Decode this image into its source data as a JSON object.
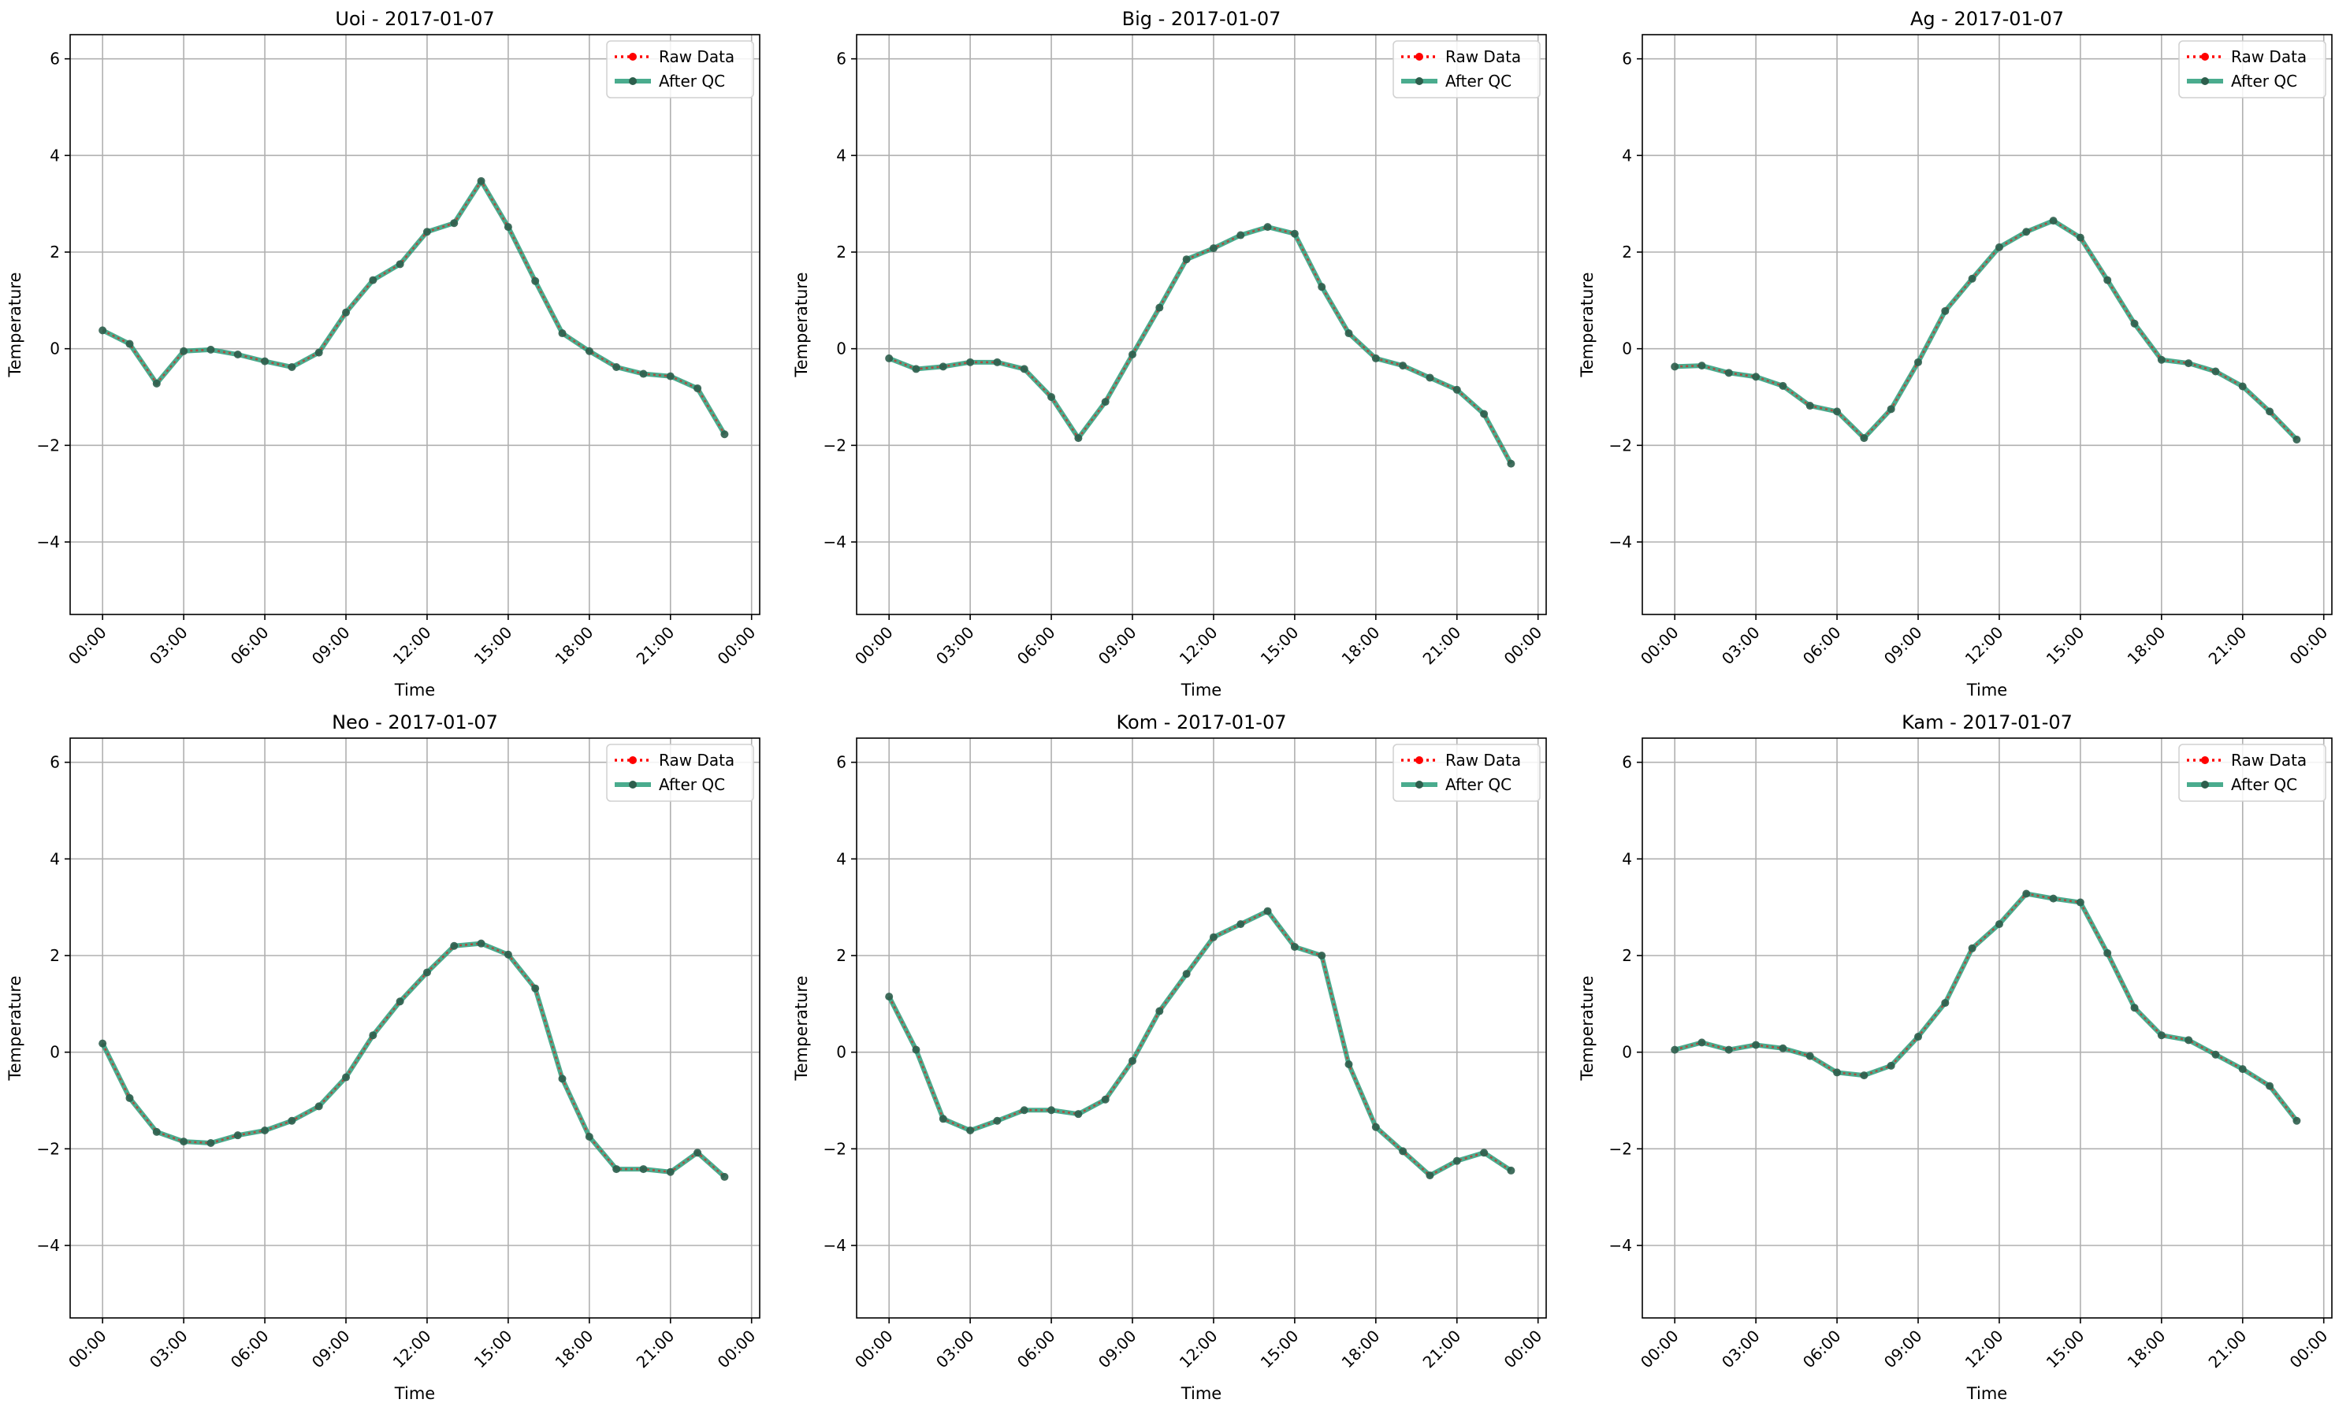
{
  "chart_data": [
    {
      "type": "line",
      "title": "Uoi - 2017-01-07",
      "xlabel": "Time",
      "ylabel": "Temperature",
      "ylim": [
        -5.5,
        6.5
      ],
      "yticks": [
        "6",
        "4",
        "2",
        "0",
        "−2",
        "−4"
      ],
      "ytick_values": [
        6,
        4,
        2,
        0,
        -2,
        -4
      ],
      "xticks": [
        "00:00",
        "03:00",
        "06:00",
        "09:00",
        "12:00",
        "15:00",
        "18:00",
        "21:00",
        "00:00"
      ],
      "xtick_values": [
        0,
        3,
        6,
        9,
        12,
        15,
        18,
        21,
        24
      ],
      "xlim": [
        -1.2,
        24.3
      ],
      "grid": true,
      "legend_position": "top-right",
      "x": [
        0,
        1,
        2,
        3,
        4,
        5,
        6,
        7,
        8,
        9,
        10,
        11,
        12,
        13,
        14,
        15,
        16,
        17,
        18,
        19,
        20,
        21,
        22,
        23
      ],
      "series": [
        {
          "name": "Raw Data",
          "values": [
            0.38,
            0.1,
            -0.72,
            -0.05,
            -0.02,
            -0.12,
            -0.26,
            -0.38,
            -0.08,
            0.75,
            1.42,
            1.75,
            2.42,
            2.6,
            3.47,
            2.52,
            1.4,
            0.32,
            -0.05,
            -0.38,
            -0.52,
            -0.57,
            -0.82,
            -1.77
          ]
        },
        {
          "name": "After QC",
          "values": [
            0.38,
            0.1,
            -0.72,
            -0.05,
            -0.02,
            -0.12,
            -0.26,
            -0.38,
            -0.08,
            0.75,
            1.42,
            1.75,
            2.42,
            2.6,
            3.47,
            2.52,
            1.4,
            0.32,
            -0.05,
            -0.38,
            -0.52,
            -0.57,
            -0.82,
            -1.77
          ]
        }
      ]
    },
    {
      "type": "line",
      "title": "Big - 2017-01-07",
      "xlabel": "Time",
      "ylabel": "Temperature",
      "ylim": [
        -5.5,
        6.5
      ],
      "yticks": [
        "6",
        "4",
        "2",
        "0",
        "−2",
        "−4"
      ],
      "ytick_values": [
        6,
        4,
        2,
        0,
        -2,
        -4
      ],
      "xticks": [
        "00:00",
        "03:00",
        "06:00",
        "09:00",
        "12:00",
        "15:00",
        "18:00",
        "21:00",
        "00:00"
      ],
      "xtick_values": [
        0,
        3,
        6,
        9,
        12,
        15,
        18,
        21,
        24
      ],
      "xlim": [
        -1.2,
        24.3
      ],
      "grid": true,
      "legend_position": "top-right",
      "x": [
        0,
        1,
        2,
        3,
        4,
        5,
        6,
        7,
        8,
        9,
        10,
        11,
        12,
        13,
        14,
        15,
        16,
        17,
        18,
        19,
        20,
        21,
        22,
        23
      ],
      "series": [
        {
          "name": "Raw Data",
          "values": [
            -0.2,
            -0.42,
            -0.37,
            -0.28,
            -0.28,
            -0.42,
            -1.0,
            -1.85,
            -1.1,
            -0.12,
            0.85,
            1.85,
            2.08,
            2.35,
            2.52,
            2.38,
            1.28,
            0.32,
            -0.2,
            -0.35,
            -0.6,
            -0.85,
            -1.35,
            -2.38
          ]
        },
        {
          "name": "After QC",
          "values": [
            -0.2,
            -0.42,
            -0.37,
            -0.28,
            -0.28,
            -0.42,
            -1.0,
            -1.85,
            -1.1,
            -0.12,
            0.85,
            1.85,
            2.08,
            2.35,
            2.52,
            2.38,
            1.28,
            0.32,
            -0.2,
            -0.35,
            -0.6,
            -0.85,
            -1.35,
            -2.38
          ]
        }
      ]
    },
    {
      "type": "line",
      "title": "Ag - 2017-01-07",
      "xlabel": "Time",
      "ylabel": "Temperature",
      "ylim": [
        -5.5,
        6.5
      ],
      "yticks": [
        "6",
        "4",
        "2",
        "0",
        "−2",
        "−4"
      ],
      "ytick_values": [
        6,
        4,
        2,
        0,
        -2,
        -4
      ],
      "xticks": [
        "00:00",
        "03:00",
        "06:00",
        "09:00",
        "12:00",
        "15:00",
        "18:00",
        "21:00",
        "00:00"
      ],
      "xtick_values": [
        0,
        3,
        6,
        9,
        12,
        15,
        18,
        21,
        24
      ],
      "xlim": [
        -1.2,
        24.3
      ],
      "grid": true,
      "legend_position": "top-right",
      "x": [
        0,
        1,
        2,
        3,
        4,
        5,
        6,
        7,
        8,
        9,
        10,
        11,
        12,
        13,
        14,
        15,
        16,
        17,
        18,
        19,
        20,
        21,
        22,
        23
      ],
      "series": [
        {
          "name": "Raw Data",
          "values": [
            -0.37,
            -0.35,
            -0.5,
            -0.58,
            -0.77,
            -1.18,
            -1.3,
            -1.85,
            -1.25,
            -0.28,
            0.78,
            1.45,
            2.1,
            2.42,
            2.65,
            2.3,
            1.42,
            0.52,
            -0.23,
            -0.3,
            -0.47,
            -0.78,
            -1.3,
            -1.88
          ]
        },
        {
          "name": "After QC",
          "values": [
            -0.37,
            -0.35,
            -0.5,
            -0.58,
            -0.77,
            -1.18,
            -1.3,
            -1.85,
            -1.25,
            -0.28,
            0.78,
            1.45,
            2.1,
            2.42,
            2.65,
            2.3,
            1.42,
            0.52,
            -0.23,
            -0.3,
            -0.47,
            -0.78,
            -1.3,
            -1.88
          ]
        }
      ]
    },
    {
      "type": "line",
      "title": "Neo - 2017-01-07",
      "xlabel": "Time",
      "ylabel": "Temperature",
      "ylim": [
        -5.5,
        6.5
      ],
      "yticks": [
        "6",
        "4",
        "2",
        "0",
        "−2",
        "−4"
      ],
      "ytick_values": [
        6,
        4,
        2,
        0,
        -2,
        -4
      ],
      "xticks": [
        "00:00",
        "03:00",
        "06:00",
        "09:00",
        "12:00",
        "15:00",
        "18:00",
        "21:00",
        "00:00"
      ],
      "xtick_values": [
        0,
        3,
        6,
        9,
        12,
        15,
        18,
        21,
        24
      ],
      "xlim": [
        -1.2,
        24.3
      ],
      "grid": true,
      "legend_position": "top-right",
      "x": [
        0,
        1,
        2,
        3,
        4,
        5,
        6,
        7,
        8,
        9,
        10,
        11,
        12,
        13,
        14,
        15,
        16,
        17,
        18,
        19,
        20,
        21,
        22,
        23
      ],
      "series": [
        {
          "name": "Raw Data",
          "values": [
            0.18,
            -0.95,
            -1.65,
            -1.85,
            -1.88,
            -1.72,
            -1.62,
            -1.42,
            -1.12,
            -0.52,
            0.35,
            1.05,
            1.65,
            2.2,
            2.25,
            2.02,
            1.32,
            -0.55,
            -1.75,
            -2.42,
            -2.42,
            -2.48,
            -2.08,
            -2.58
          ]
        },
        {
          "name": "After QC",
          "values": [
            0.18,
            -0.95,
            -1.65,
            -1.85,
            -1.88,
            -1.72,
            -1.62,
            -1.42,
            -1.12,
            -0.52,
            0.35,
            1.05,
            1.65,
            2.2,
            2.25,
            2.02,
            1.32,
            -0.55,
            -1.75,
            -2.42,
            -2.42,
            -2.48,
            -2.08,
            -2.58
          ]
        }
      ]
    },
    {
      "type": "line",
      "title": "Kom - 2017-01-07",
      "xlabel": "Time",
      "ylabel": "Temperature",
      "ylim": [
        -5.5,
        6.5
      ],
      "yticks": [
        "6",
        "4",
        "2",
        "0",
        "−2",
        "−4"
      ],
      "ytick_values": [
        6,
        4,
        2,
        0,
        -2,
        -4
      ],
      "xticks": [
        "00:00",
        "03:00",
        "06:00",
        "09:00",
        "12:00",
        "15:00",
        "18:00",
        "21:00",
        "00:00"
      ],
      "xtick_values": [
        0,
        3,
        6,
        9,
        12,
        15,
        18,
        21,
        24
      ],
      "xlim": [
        -1.2,
        24.3
      ],
      "grid": true,
      "legend_position": "top-right",
      "x": [
        0,
        1,
        2,
        3,
        4,
        5,
        6,
        7,
        8,
        9,
        10,
        11,
        12,
        13,
        14,
        15,
        16,
        17,
        18,
        19,
        20,
        21,
        22,
        23
      ],
      "series": [
        {
          "name": "Raw Data",
          "values": [
            1.15,
            0.05,
            -1.38,
            -1.62,
            -1.42,
            -1.2,
            -1.2,
            -1.28,
            -0.98,
            -0.18,
            0.85,
            1.62,
            2.38,
            2.65,
            2.92,
            2.18,
            2.0,
            -0.25,
            -1.55,
            -2.05,
            -2.55,
            -2.25,
            -2.08,
            -2.45
          ]
        },
        {
          "name": "After QC",
          "values": [
            1.15,
            0.05,
            -1.38,
            -1.62,
            -1.42,
            -1.2,
            -1.2,
            -1.28,
            -0.98,
            -0.18,
            0.85,
            1.62,
            2.38,
            2.65,
            2.92,
            2.18,
            2.0,
            -0.25,
            -1.55,
            -2.05,
            -2.55,
            -2.25,
            -2.08,
            -2.45
          ]
        }
      ]
    },
    {
      "type": "line",
      "title": "Kam - 2017-01-07",
      "xlabel": "Time",
      "ylabel": "Temperature",
      "ylim": [
        -5.5,
        6.5
      ],
      "yticks": [
        "6",
        "4",
        "2",
        "0",
        "−2",
        "−4"
      ],
      "ytick_values": [
        6,
        4,
        2,
        0,
        -2,
        -4
      ],
      "xticks": [
        "00:00",
        "03:00",
        "06:00",
        "09:00",
        "12:00",
        "15:00",
        "18:00",
        "21:00",
        "00:00"
      ],
      "xtick_values": [
        0,
        3,
        6,
        9,
        12,
        15,
        18,
        21,
        24
      ],
      "xlim": [
        -1.2,
        24.3
      ],
      "grid": true,
      "legend_position": "top-right",
      "x": [
        0,
        1,
        2,
        3,
        4,
        5,
        6,
        7,
        8,
        9,
        10,
        11,
        12,
        13,
        14,
        15,
        16,
        17,
        18,
        19,
        20,
        21,
        22,
        23
      ],
      "series": [
        {
          "name": "Raw Data",
          "values": [
            0.05,
            0.2,
            0.05,
            0.15,
            0.08,
            -0.08,
            -0.42,
            -0.48,
            -0.28,
            0.32,
            1.02,
            2.15,
            2.65,
            3.28,
            3.18,
            3.1,
            2.05,
            0.92,
            0.35,
            0.25,
            -0.05,
            -0.35,
            -0.7,
            -1.42
          ]
        },
        {
          "name": "After QC",
          "values": [
            0.05,
            0.2,
            0.05,
            0.15,
            0.08,
            -0.08,
            -0.42,
            -0.48,
            -0.28,
            0.32,
            1.02,
            2.15,
            2.65,
            3.28,
            3.18,
            3.1,
            2.05,
            0.92,
            0.35,
            0.25,
            -0.05,
            -0.35,
            -0.7,
            -1.42
          ]
        }
      ]
    }
  ],
  "colors": {
    "raw": "#ff0000",
    "qc_line": "#2a9d7a",
    "qc_marker": "#2d5e4c",
    "grid": "#b0b0b0",
    "axis": "#000000"
  }
}
